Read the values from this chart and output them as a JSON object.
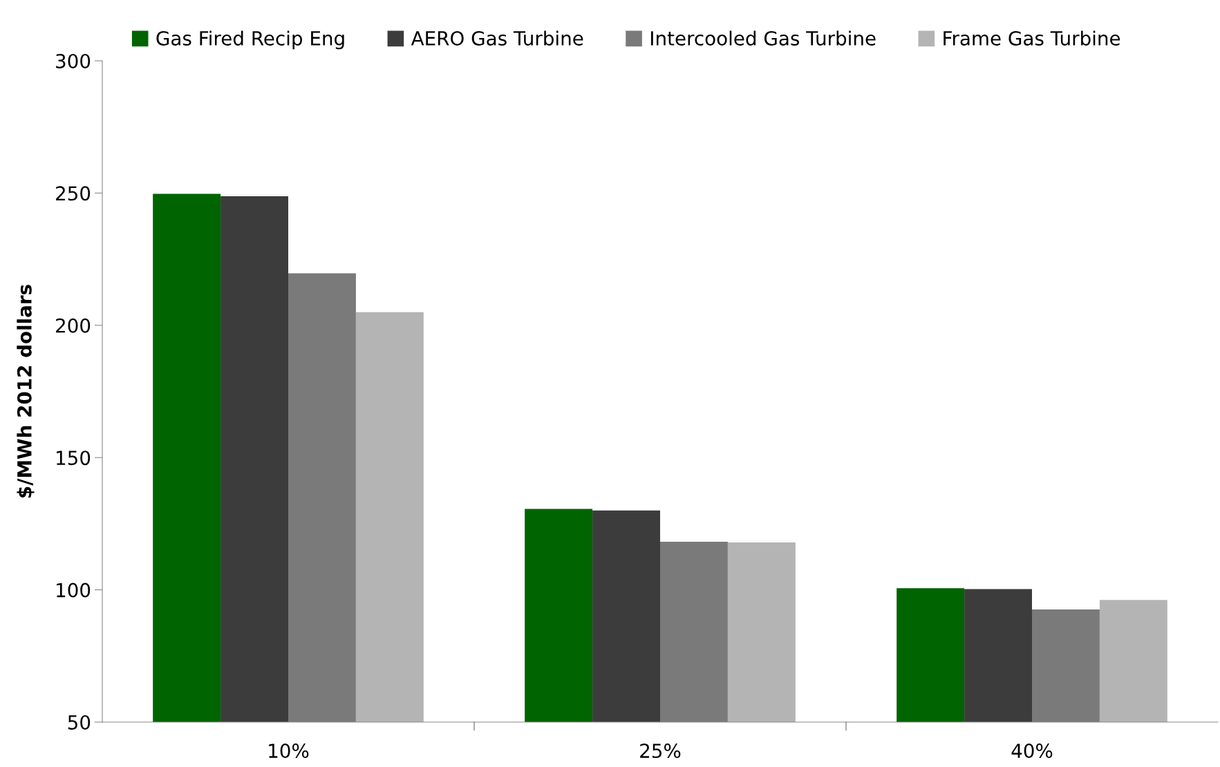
{
  "chart_data": {
    "type": "bar",
    "ylabel": "$/MWh 2012 dollars",
    "categories": [
      "10%",
      "25%",
      "40%"
    ],
    "series": [
      {
        "name": "Gas Fired Recip Eng",
        "color": "#006400",
        "values": [
          249.7,
          130.6,
          100.6
        ]
      },
      {
        "name": "AERO Gas Turbine",
        "color": "#3c3c3c",
        "values": [
          248.8,
          130.0,
          100.3
        ]
      },
      {
        "name": "Intercooled Gas Turbine",
        "color": "#7a7a7a",
        "values": [
          219.7,
          118.2,
          92.6
        ]
      },
      {
        "name": "Frame Gas Turbine",
        "color": "#b4b4b4",
        "values": [
          205.0,
          117.9,
          96.2
        ]
      }
    ],
    "ylim": [
      50,
      300
    ],
    "yticks": [
      50,
      100,
      150,
      200,
      250,
      300
    ],
    "grid": false,
    "legend": "top"
  }
}
